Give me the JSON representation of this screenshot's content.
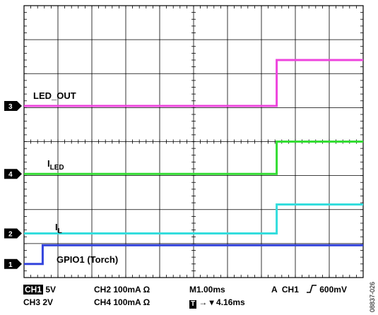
{
  "chart_data": {
    "type": "line",
    "grid": true,
    "x_divisions": 10,
    "y_divisions": 8,
    "traces": [
      {
        "marker": "3",
        "label": "LED_OUT",
        "sub": "",
        "color": "#ee44dd",
        "low_level_div": 5.05,
        "high_level_div": 6.4,
        "step_time_div": 7.45
      },
      {
        "marker": "4",
        "label": "I",
        "sub": "LED",
        "color": "#33dd33",
        "low_level_div": 3.05,
        "high_level_div": 4.0,
        "step_time_div": 7.45
      },
      {
        "marker": "2",
        "label": "I",
        "sub": "L",
        "color": "#33dddd",
        "low_level_div": 1.3,
        "high_level_div": 2.15,
        "step_time_div": 7.45
      },
      {
        "marker": "1",
        "label": "GPIO1 (Torch)",
        "sub": "",
        "color": "#3344dd",
        "low_level_div": 0.4,
        "high_level_div": 0.95,
        "step_time_div": 0.55
      }
    ]
  },
  "footer": {
    "ch1_tag": "CH1",
    "ch1_scale": "5V",
    "ch2": "CH2  100mA  Ω",
    "timebase": "M1.00ms",
    "trigger": "A  CH1  ",
    "trigger_icon": "rising-edge-icon",
    "trigger_level": "600mV",
    "ch3": "CH3  2V",
    "ch4": "CH4  100mA  Ω",
    "t_tag": "T",
    "t_offset": "→ ▾ 4.16ms"
  },
  "figure_id": "08837-026"
}
